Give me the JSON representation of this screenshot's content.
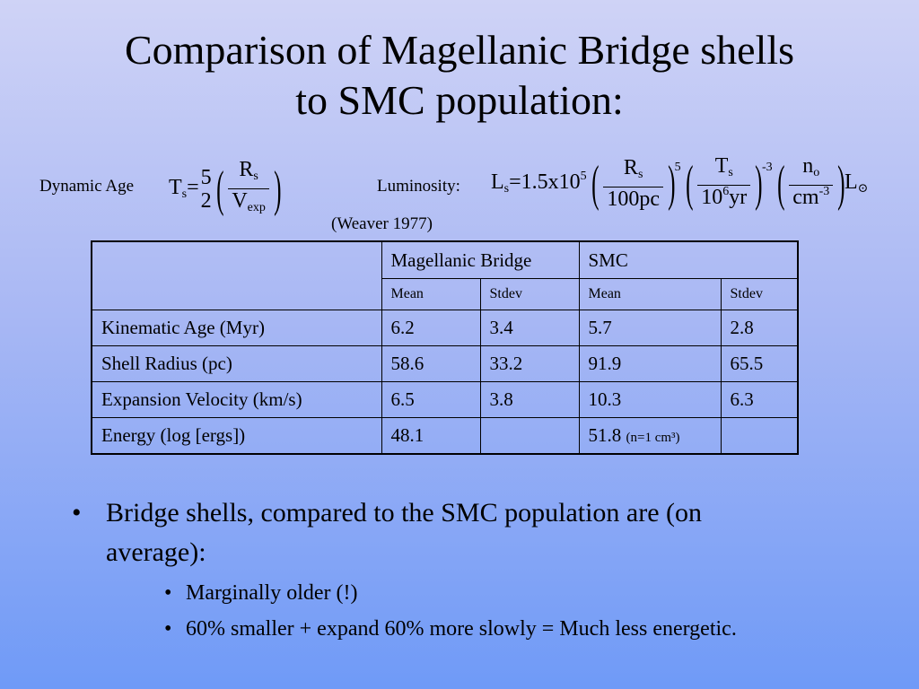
{
  "title": {
    "line1": "Comparison of Magellanic Bridge shells",
    "line2": "to SMC population:"
  },
  "formulas": {
    "dynamic_age_label": "Dynamic Age",
    "ts_symbol": "T",
    "ts_sub": "s",
    "ts_eq": "=",
    "ts_frac_num": "5",
    "ts_frac_den": "2",
    "rs_symbol": "R",
    "rs_sub": "s",
    "vexp_symbol": "V",
    "vexp_sub": "exp",
    "luminosity_label": "Luminosity:",
    "ls_symbol": "L",
    "ls_sub": "s",
    "ls_coeff": "=1.5x10",
    "ls_coeff_exp": "5",
    "r_num": "R",
    "r_num_sub": "s",
    "r_den": "100pc",
    "r_exp": "5",
    "t_num": "T",
    "t_num_sub": "s",
    "t_den_base": "10",
    "t_den_exp": "6",
    "t_den_unit": "yr",
    "t_exp": "-3",
    "n_num": "n",
    "n_num_sub": "o",
    "n_den": "cm",
    "n_den_exp": "-3",
    "lsun": "L",
    "lsun_sym": "⊙",
    "reference": "(Weaver 1977)"
  },
  "table": {
    "group_headers": [
      "Magellanic Bridge",
      "SMC"
    ],
    "sub_headers": [
      "Mean",
      "Stdev",
      "Mean",
      "Stdev"
    ],
    "rows": [
      {
        "label": "Kinematic Age (Myr)",
        "values": [
          "6.2",
          "3.4",
          "5.7",
          "2.8"
        ],
        "note": ""
      },
      {
        "label": "Shell Radius (pc)",
        "values": [
          "58.6",
          "33.2",
          "91.9",
          "65.5"
        ],
        "note": ""
      },
      {
        "label": "Expansion Velocity (km/s)",
        "values": [
          "6.5",
          "3.8",
          "10.3",
          "6.3"
        ],
        "note": ""
      },
      {
        "label": "Energy (log [ergs])",
        "values": [
          "48.1",
          "",
          "51.8",
          ""
        ],
        "note": "(n=1 cm³)"
      }
    ]
  },
  "bullets": {
    "main": "Bridge shells, compared to the SMC population are (on average):",
    "sub": [
      "Marginally older (!)",
      "60% smaller + expand 60% more slowly = Much less energetic."
    ]
  }
}
